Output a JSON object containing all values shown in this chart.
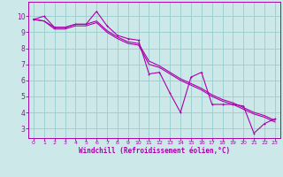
{
  "xlabel": "Windchill (Refroidissement éolien,°C)",
  "background_color": "#cce8e8",
  "grid_color": "#99cccc",
  "line_color": "#aa00aa",
  "spine_color": "#aa00aa",
  "x_ticks": [
    0,
    1,
    2,
    3,
    4,
    5,
    6,
    7,
    8,
    9,
    10,
    11,
    12,
    13,
    14,
    15,
    16,
    17,
    18,
    19,
    20,
    21,
    22,
    23
  ],
  "y_ticks": [
    3,
    4,
    5,
    6,
    7,
    8,
    9,
    10
  ],
  "ylim": [
    2.4,
    10.9
  ],
  "xlim": [
    -0.5,
    23.5
  ],
  "line1_x": [
    0,
    1,
    2,
    3,
    4,
    5,
    6,
    7,
    8,
    9,
    10,
    11,
    12,
    13,
    14,
    15,
    16,
    17,
    18,
    19,
    20,
    21,
    22,
    23
  ],
  "line1_y": [
    9.8,
    10.0,
    9.3,
    9.3,
    9.5,
    9.5,
    10.3,
    9.4,
    8.8,
    8.6,
    8.5,
    6.4,
    6.5,
    5.2,
    4.0,
    6.2,
    6.5,
    4.5,
    4.5,
    4.5,
    4.4,
    2.7,
    3.3,
    3.6
  ],
  "line2_x": [
    0,
    1,
    2,
    3,
    4,
    5,
    6,
    7,
    8,
    9,
    10,
    11,
    12,
    13,
    14,
    15,
    16,
    17,
    18,
    19,
    20,
    21,
    22,
    23
  ],
  "line2_y": [
    9.8,
    9.7,
    9.3,
    9.3,
    9.5,
    9.5,
    9.7,
    9.1,
    8.7,
    8.4,
    8.3,
    7.2,
    6.9,
    6.5,
    6.1,
    5.8,
    5.5,
    5.1,
    4.8,
    4.6,
    4.3,
    4.0,
    3.8,
    3.5
  ],
  "line3_x": [
    0,
    1,
    2,
    3,
    4,
    5,
    6,
    7,
    8,
    9,
    10,
    11,
    12,
    13,
    14,
    15,
    16,
    17,
    18,
    19,
    20,
    21,
    22,
    23
  ],
  "line3_y": [
    9.8,
    9.7,
    9.2,
    9.2,
    9.4,
    9.4,
    9.6,
    9.0,
    8.6,
    8.3,
    8.2,
    7.0,
    6.8,
    6.4,
    6.0,
    5.7,
    5.4,
    5.0,
    4.7,
    4.5,
    4.2,
    3.9,
    3.7,
    3.4
  ],
  "linewidth": 0.8,
  "markersize": 2.0
}
